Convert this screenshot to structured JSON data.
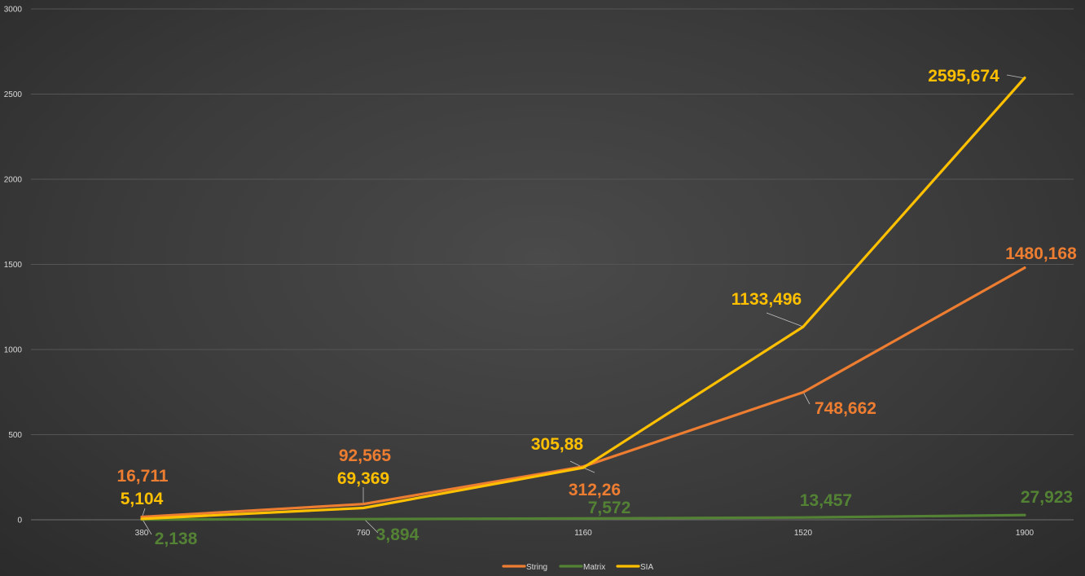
{
  "chart_data": {
    "type": "line",
    "title": "",
    "xlabel": "",
    "ylabel": "",
    "categories": [
      "380",
      "760",
      "1160",
      "1520",
      "1900"
    ],
    "y_ticks": [
      "0",
      "500",
      "1000",
      "1500",
      "2000",
      "2500",
      "3000"
    ],
    "ylim": [
      0,
      3000
    ],
    "grid": true,
    "legend_position": "bottom",
    "series": [
      {
        "name": "String",
        "color": "#ed7d31",
        "values": [
          16.711,
          92.565,
          312.26,
          748.662,
          1480.168
        ],
        "labels": [
          "16,711",
          "92,565",
          "312,26",
          "748,662",
          "1480,168"
        ]
      },
      {
        "name": "Matrix",
        "color": "#548235",
        "values": [
          2.138,
          3.894,
          7.572,
          13.457,
          27.923
        ],
        "labels": [
          "2,138",
          "3,894",
          "7,572",
          "13,457",
          "27,923"
        ]
      },
      {
        "name": "SIA",
        "color": "#ffc000",
        "values": [
          5.104,
          69.369,
          305.88,
          1133.496,
          2595.674
        ],
        "labels": [
          "5,104",
          "69,369",
          "305,88",
          "1133,496",
          "2595,674"
        ]
      }
    ]
  }
}
